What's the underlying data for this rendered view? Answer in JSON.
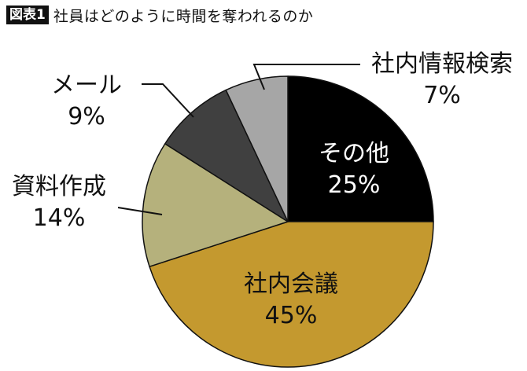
{
  "header": {
    "badge": "図表1",
    "title": "社員はどのように時間を奪われるのか"
  },
  "chart_data": {
    "type": "pie",
    "title": "社員はどのように時間を奪われるのか",
    "start_angle": "12 o'clock, clockwise",
    "categories": [
      "その他",
      "社内会議",
      "資料作成",
      "メール",
      "社内情報検索"
    ],
    "values": [
      25,
      45,
      14,
      9,
      7
    ],
    "unit": "%",
    "colors": [
      "#000000",
      "#c4992f",
      "#b5b17c",
      "#404040",
      "#a6a6a6"
    ],
    "labels": [
      {
        "name": "その他",
        "pct": "25%",
        "placement": "inside"
      },
      {
        "name": "社内会議",
        "pct": "45%",
        "placement": "inside"
      },
      {
        "name": "資料作成",
        "pct": "14%",
        "placement": "outside-left"
      },
      {
        "name": "メール",
        "pct": "9%",
        "placement": "outside-left"
      },
      {
        "name": "社内情報検索",
        "pct": "7%",
        "placement": "outside-right"
      }
    ]
  }
}
